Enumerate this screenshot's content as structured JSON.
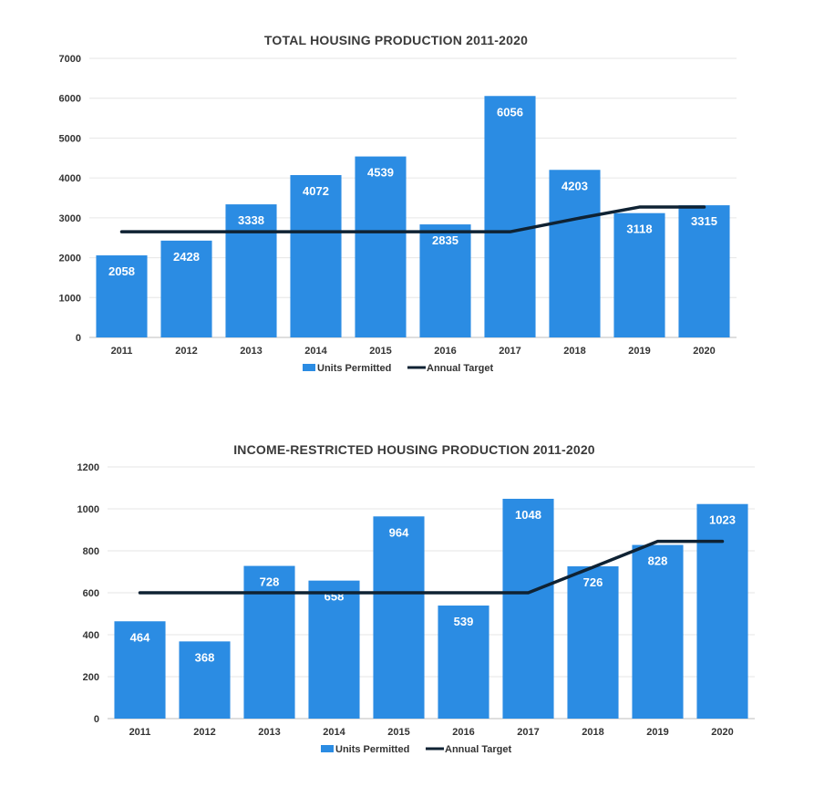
{
  "chart_data": [
    {
      "type": "bar",
      "title": "TOTAL HOUSING PRODUCTION 2011-2020",
      "categories": [
        "2011",
        "2012",
        "2013",
        "2014",
        "2015",
        "2016",
        "2017",
        "2018",
        "2019",
        "2020"
      ],
      "series": [
        {
          "name": "Units Permitted",
          "type": "bar",
          "values": [
            2058,
            2428,
            3338,
            4072,
            4539,
            2835,
            6056,
            4203,
            3118,
            3315
          ]
        },
        {
          "name": "Annual Target",
          "type": "line",
          "values": [
            2650,
            2650,
            2650,
            2650,
            2650,
            2650,
            2650,
            2970,
            3270,
            3270
          ]
        }
      ],
      "ylim": [
        0,
        7000
      ],
      "yticks": [
        0,
        1000,
        2000,
        3000,
        4000,
        5000,
        6000,
        7000
      ],
      "grid": true,
      "legend": "bottom",
      "data_labels": true,
      "colors": {
        "bar": "#2b8ce3",
        "line": "#0f2233"
      }
    },
    {
      "type": "bar",
      "title": "INCOME-RESTRICTED HOUSING PRODUCTION 2011-2020",
      "categories": [
        "2011",
        "2012",
        "2013",
        "2014",
        "2015",
        "2016",
        "2017",
        "2018",
        "2019",
        "2020"
      ],
      "series": [
        {
          "name": "Units Permitted",
          "type": "bar",
          "values": [
            464,
            368,
            728,
            658,
            964,
            539,
            1048,
            726,
            828,
            1023
          ]
        },
        {
          "name": "Annual Target",
          "type": "line",
          "values": [
            600,
            600,
            600,
            600,
            600,
            600,
            600,
            722,
            845,
            845
          ]
        }
      ],
      "ylim": [
        0,
        1200
      ],
      "yticks": [
        0,
        200,
        400,
        600,
        800,
        1000,
        1200
      ],
      "grid": true,
      "legend": "bottom",
      "data_labels": true,
      "colors": {
        "bar": "#2b8ce3",
        "line": "#0f2233"
      }
    }
  ]
}
